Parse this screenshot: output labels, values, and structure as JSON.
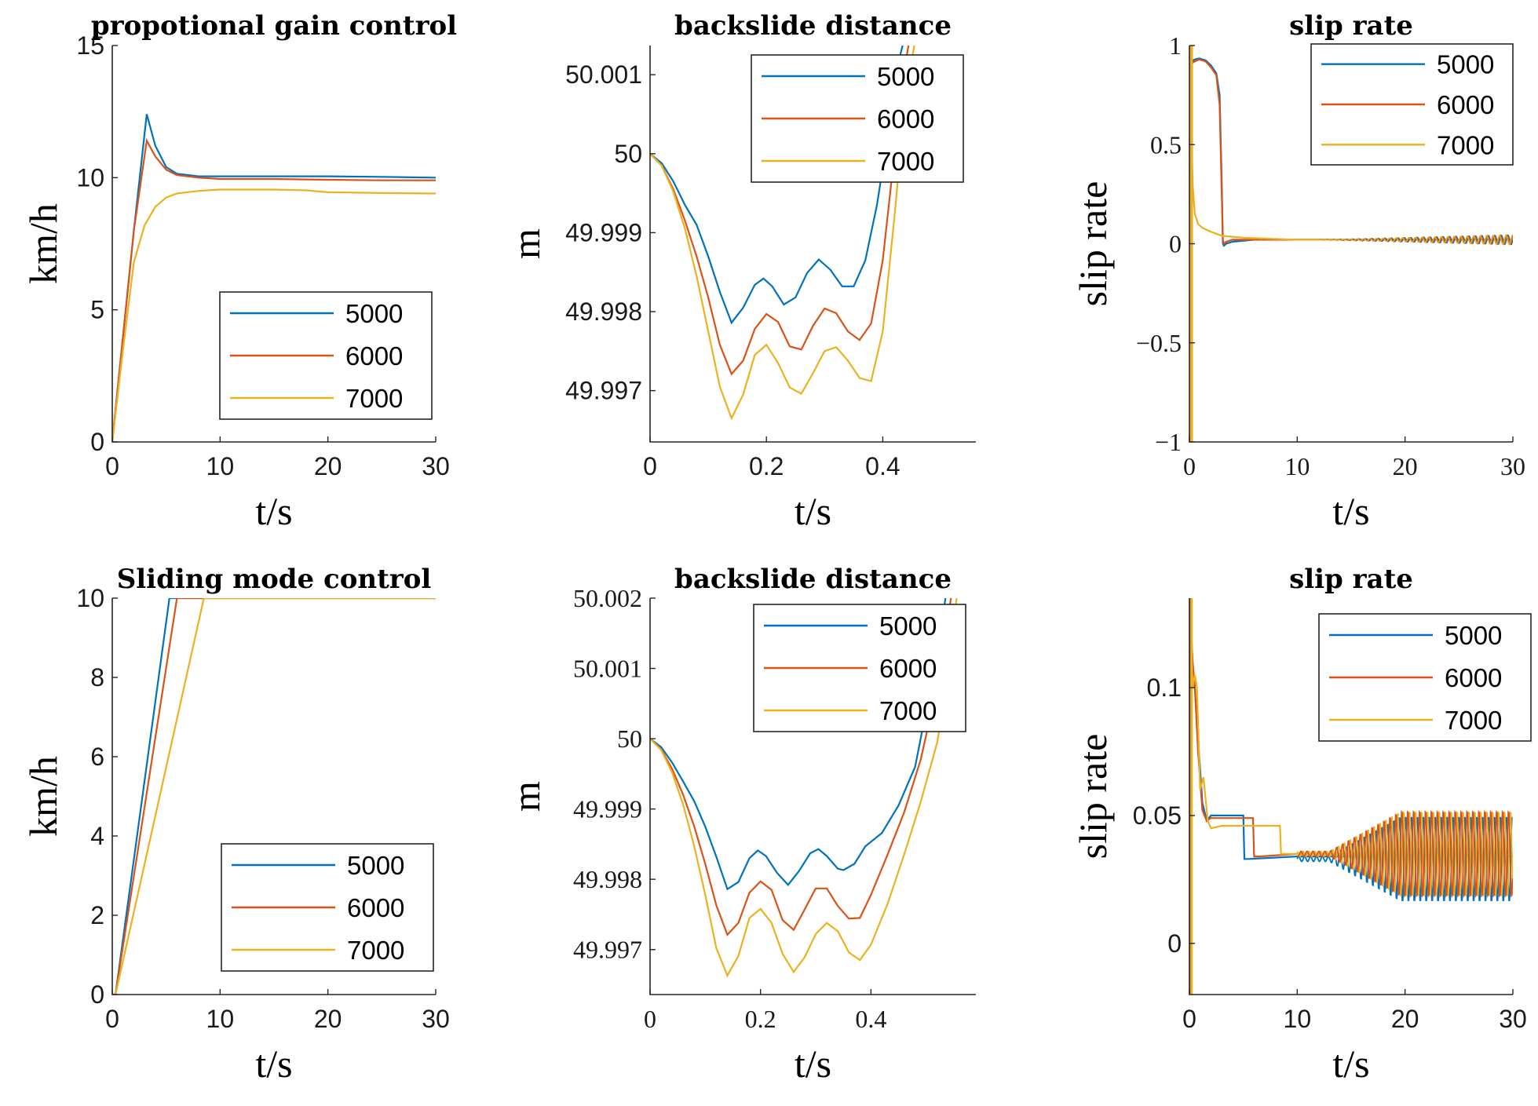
{
  "colors": {
    "5000": "#0072BD",
    "6000": "#D95319",
    "7000": "#EDB120"
  },
  "chart_data": [
    {
      "type": "line",
      "title": "propotional gain control",
      "xlabel": "t/s",
      "ylabel": "km/h",
      "xlim": [
        0,
        30
      ],
      "ylim": [
        0,
        15
      ],
      "xticks": [
        0,
        10,
        20,
        30
      ],
      "xticklabels": [
        "0",
        "10",
        "20",
        "30"
      ],
      "yticks": [
        0,
        5,
        10,
        15
      ],
      "yticklabels": [
        "0",
        "5",
        "10",
        "15"
      ],
      "tickfont": "sans",
      "legend": "bottom-right",
      "series": [
        {
          "name": "5000",
          "x": [
            0,
            1,
            2,
            3.2,
            4,
            5,
            6,
            8,
            10,
            15,
            20,
            25,
            30
          ],
          "y": [
            0,
            4,
            8,
            12.4,
            11.2,
            10.4,
            10.15,
            10.05,
            10.05,
            10.05,
            10.05,
            10.03,
            10.0
          ]
        },
        {
          "name": "6000",
          "x": [
            0,
            1,
            2,
            3.2,
            4,
            5,
            6,
            8,
            10,
            15,
            20,
            25,
            30
          ],
          "y": [
            0,
            4,
            8,
            11.4,
            10.8,
            10.3,
            10.1,
            10.0,
            9.95,
            9.95,
            9.92,
            9.9,
            9.9
          ]
        },
        {
          "name": "7000",
          "x": [
            0,
            1,
            2,
            3,
            4,
            5,
            6,
            8,
            10,
            15,
            18,
            20,
            25,
            30
          ],
          "y": [
            0,
            3.5,
            6.8,
            8.2,
            8.9,
            9.25,
            9.4,
            9.5,
            9.55,
            9.55,
            9.52,
            9.45,
            9.42,
            9.4
          ]
        }
      ]
    },
    {
      "type": "line",
      "title": "backslide distance",
      "xlabel": "t/s",
      "ylabel": "m",
      "xlim": [
        0,
        0.56
      ],
      "ylim": [
        49.99635,
        50.00137
      ],
      "xticks": [
        0,
        0.2,
        0.4
      ],
      "xticklabels": [
        "0",
        "0.2",
        "0.4"
      ],
      "yticks": [
        49.997,
        49.998,
        49.999,
        50,
        50.001
      ],
      "yticklabels": [
        "49.997",
        "49.998",
        "49.999",
        "50",
        "50.001"
      ],
      "tickfont": "sans",
      "legend": "top-right",
      "series": [
        {
          "name": "5000",
          "x": [
            0,
            0.02,
            0.04,
            0.06,
            0.08,
            0.1,
            0.12,
            0.14,
            0.16,
            0.18,
            0.195,
            0.21,
            0.23,
            0.25,
            0.27,
            0.29,
            0.31,
            0.33,
            0.35,
            0.37,
            0.39,
            0.41,
            0.425,
            0.435
          ],
          "y": [
            50.0,
            49.99988,
            49.99965,
            49.99935,
            49.9991,
            49.9987,
            49.99825,
            49.99786,
            49.99805,
            49.99834,
            49.99842,
            49.99832,
            49.99809,
            49.99818,
            49.99849,
            49.99866,
            49.99853,
            49.99832,
            49.99832,
            49.99865,
            49.99935,
            50.0003,
            50.0011,
            50.0014
          ]
        },
        {
          "name": "6000",
          "x": [
            0,
            0.02,
            0.04,
            0.06,
            0.08,
            0.1,
            0.12,
            0.14,
            0.16,
            0.18,
            0.2,
            0.22,
            0.24,
            0.26,
            0.28,
            0.3,
            0.32,
            0.34,
            0.36,
            0.38,
            0.4,
            0.42,
            0.435,
            0.445
          ],
          "y": [
            50.0,
            49.99985,
            49.99955,
            49.99915,
            49.9987,
            49.99818,
            49.99758,
            49.99721,
            49.99738,
            49.99778,
            49.99797,
            49.99787,
            49.99756,
            49.99752,
            49.99782,
            49.99804,
            49.99798,
            49.99775,
            49.99764,
            49.99785,
            49.99865,
            50.0,
            50.001,
            50.0014
          ]
        },
        {
          "name": "7000",
          "x": [
            0,
            0.02,
            0.04,
            0.06,
            0.08,
            0.1,
            0.12,
            0.14,
            0.16,
            0.18,
            0.2,
            0.22,
            0.24,
            0.26,
            0.28,
            0.3,
            0.32,
            0.34,
            0.36,
            0.38,
            0.4,
            0.42,
            0.44,
            0.455
          ],
          "y": [
            50.0,
            49.99985,
            49.99952,
            49.99905,
            49.99845,
            49.99775,
            49.99705,
            49.99665,
            49.99695,
            49.99745,
            49.99758,
            49.99735,
            49.99704,
            49.99696,
            49.99722,
            49.9975,
            49.99755,
            49.99738,
            49.99716,
            49.99712,
            49.99775,
            49.9992,
            50.0008,
            50.0014
          ]
        }
      ]
    },
    {
      "type": "line",
      "title": "slip rate",
      "xlabel": "t/s",
      "ylabel": "slip rate",
      "xlim": [
        0,
        30
      ],
      "ylim": [
        -1,
        1
      ],
      "xticks": [
        0,
        10,
        20,
        30
      ],
      "xticklabels": [
        "0",
        "10",
        "20",
        "30"
      ],
      "yticks": [
        -1,
        -0.5,
        0,
        0.5,
        1
      ],
      "yticklabels": [
        "−1",
        "−0.5",
        "0",
        "0.5",
        "1"
      ],
      "tickfont": "serif",
      "legend": "top-right",
      "series": [
        {
          "name": "5000",
          "x": [
            0,
            0.1,
            0.2,
            0.5,
            0.9,
            1.5,
            2.0,
            2.5,
            2.8,
            3.0,
            3.1,
            3.2,
            3.4,
            4,
            6,
            10,
            15,
            20,
            30
          ],
          "y": [
            0,
            0.9,
            0.92,
            0.93,
            0.935,
            0.925,
            0.9,
            0.86,
            0.75,
            0.3,
            0.0,
            -0.01,
            0.0,
            0.01,
            0.02,
            0.02,
            0.02,
            0.02,
            0.02
          ]
        },
        {
          "name": "6000",
          "x": [
            0,
            0.1,
            0.2,
            0.5,
            0.9,
            1.5,
            2.0,
            2.5,
            2.8,
            3.0,
            3.1,
            3.2,
            3.4,
            4,
            6,
            10,
            15,
            20,
            30
          ],
          "y": [
            0,
            0.88,
            0.91,
            0.92,
            0.93,
            0.92,
            0.89,
            0.85,
            0.7,
            0.25,
            0.02,
            0.0,
            0.01,
            0.02,
            0.02,
            0.02,
            0.02,
            0.02,
            0.02
          ]
        },
        {
          "name": "7000",
          "x": [
            0,
            0.05,
            0.15,
            0.3,
            0.5,
            0.8,
            1.2,
            2.0,
            3.0,
            5,
            10,
            20,
            30
          ],
          "y": [
            0,
            0.9,
            0.6,
            0.3,
            0.15,
            0.1,
            0.08,
            0.06,
            0.04,
            0.03,
            0.02,
            0.02,
            0.02
          ]
        }
      ]
    },
    {
      "type": "line",
      "title": "Sliding mode control",
      "xlabel": "t/s",
      "ylabel": "km/h",
      "xlim": [
        0,
        30
      ],
      "ylim": [
        0,
        10
      ],
      "xticks": [
        0,
        10,
        20,
        30
      ],
      "xticklabels": [
        "0",
        "10",
        "20",
        "30"
      ],
      "yticks": [
        0,
        2,
        4,
        6,
        8,
        10
      ],
      "yticklabels": [
        "0",
        "2",
        "4",
        "6",
        "8",
        "10"
      ],
      "tickfont": "sans",
      "legend": "bottom-right",
      "series": [
        {
          "name": "5000",
          "x": [
            0,
            0.3,
            5.3,
            30
          ],
          "y": [
            0,
            0,
            10,
            10
          ]
        },
        {
          "name": "6000",
          "x": [
            0,
            0.3,
            6.0,
            30
          ],
          "y": [
            0,
            0,
            10,
            10
          ]
        },
        {
          "name": "7000",
          "x": [
            0,
            0.3,
            8.5,
            30
          ],
          "y": [
            0,
            0,
            10,
            10
          ]
        }
      ]
    },
    {
      "type": "line",
      "title": "backslide distance",
      "xlabel": "t/s",
      "ylabel": "m",
      "xlim": [
        0,
        0.59
      ],
      "ylim": [
        49.99636,
        50.002
      ],
      "xticks": [
        0,
        0.2,
        0.4
      ],
      "xticklabels": [
        "0",
        "0.2",
        "0.4"
      ],
      "yticks": [
        49.997,
        49.998,
        49.999,
        50,
        50.001,
        50.002
      ],
      "yticklabels": [
        "49.997",
        "49.998",
        "49.999",
        "50",
        "50.001",
        "50.002"
      ],
      "tickfont": "serif",
      "legend": "top-right",
      "series": [
        {
          "name": "5000",
          "x": [
            0,
            0.02,
            0.04,
            0.06,
            0.08,
            0.1,
            0.12,
            0.14,
            0.16,
            0.18,
            0.195,
            0.21,
            0.23,
            0.25,
            0.27,
            0.29,
            0.305,
            0.32,
            0.34,
            0.35,
            0.37,
            0.39,
            0.42,
            0.45,
            0.48,
            0.5,
            0.52,
            0.535
          ],
          "y": [
            50.0,
            49.99988,
            49.99966,
            49.99939,
            49.99911,
            49.99875,
            49.99832,
            49.99786,
            49.99796,
            49.9983,
            49.99841,
            49.99833,
            49.99809,
            49.99792,
            49.99812,
            49.99837,
            49.99843,
            49.99833,
            49.99815,
            49.99813,
            49.99822,
            49.99847,
            49.99866,
            49.99905,
            49.9996,
            50.0004,
            50.0012,
            50.002
          ]
        },
        {
          "name": "6000",
          "x": [
            0,
            0.02,
            0.04,
            0.06,
            0.08,
            0.1,
            0.12,
            0.14,
            0.16,
            0.18,
            0.2,
            0.22,
            0.24,
            0.26,
            0.28,
            0.3,
            0.32,
            0.34,
            0.36,
            0.38,
            0.4,
            0.43,
            0.46,
            0.49,
            0.51,
            0.53,
            0.545
          ],
          "y": [
            50.0,
            49.99985,
            49.99957,
            49.9992,
            49.99875,
            49.99822,
            49.99763,
            49.99721,
            49.99738,
            49.99781,
            49.99797,
            49.99785,
            49.99742,
            49.99728,
            49.99757,
            49.99787,
            49.99787,
            49.99762,
            49.99744,
            49.99745,
            49.99778,
            49.99835,
            49.99895,
            49.9997,
            50.0004,
            50.0013,
            50.002
          ]
        },
        {
          "name": "7000",
          "x": [
            0,
            0.02,
            0.04,
            0.06,
            0.08,
            0.1,
            0.12,
            0.14,
            0.16,
            0.18,
            0.2,
            0.22,
            0.24,
            0.26,
            0.28,
            0.3,
            0.32,
            0.34,
            0.36,
            0.38,
            0.4,
            0.43,
            0.46,
            0.49,
            0.52,
            0.54,
            0.555
          ],
          "y": [
            50.0,
            49.99984,
            49.99952,
            49.99906,
            49.99847,
            49.99778,
            49.99702,
            49.99663,
            49.99691,
            49.99745,
            49.99758,
            49.99738,
            49.99694,
            49.99668,
            49.99689,
            49.99722,
            49.99738,
            49.99726,
            49.99696,
            49.99685,
            49.99707,
            49.99765,
            49.99835,
            49.9991,
            49.99995,
            50.0009,
            50.002
          ]
        }
      ]
    },
    {
      "type": "line",
      "title": "slip rate",
      "xlabel": "t/s",
      "ylabel": "slip rate",
      "xlim": [
        0,
        30
      ],
      "ylim": [
        -0.02,
        0.135
      ],
      "xticks": [
        0,
        10,
        20,
        30
      ],
      "xticklabels": [
        "0",
        "10",
        "20",
        "30"
      ],
      "yticks": [
        0,
        0.05,
        0.1
      ],
      "yticklabels": [
        "0",
        "0.05",
        "0.1"
      ],
      "tickfont": "sans",
      "legend": "top-right",
      "series": [
        {
          "name": "5000",
          "x": [
            0,
            0.3,
            0.5,
            0.8,
            1.2,
            1.6,
            2.0,
            3,
            4,
            5.0,
            5.1,
            5.5,
            10,
            15,
            20,
            25,
            30
          ],
          "y": [
            0.135,
            0.11,
            0.1,
            0.08,
            0.055,
            0.048,
            0.05,
            0.05,
            0.05,
            0.05,
            0.033,
            0.033,
            0.034,
            0.034,
            0.034,
            0.034,
            0.034
          ]
        },
        {
          "name": "6000",
          "x": [
            0,
            0.3,
            0.5,
            0.8,
            1.2,
            1.6,
            2.0,
            3,
            5,
            5.9,
            6.0,
            6.5,
            10,
            15,
            20,
            25,
            30
          ],
          "y": [
            0.135,
            0.11,
            0.1,
            0.075,
            0.052,
            0.048,
            0.049,
            0.049,
            0.049,
            0.049,
            0.034,
            0.034,
            0.035,
            0.035,
            0.035,
            0.035,
            0.035
          ]
        },
        {
          "name": "7000",
          "x": [
            0,
            0.3,
            0.5,
            0.7,
            1.0,
            1.3,
            1.7,
            2.0,
            3,
            5,
            8.4,
            8.5,
            9,
            12,
            15,
            30
          ],
          "y": [
            0.135,
            0.1,
            0.105,
            0.1,
            0.06,
            0.065,
            0.048,
            0.045,
            0.046,
            0.046,
            0.046,
            0.035,
            0.035,
            0.035,
            0.035,
            0.035
          ]
        }
      ]
    }
  ]
}
